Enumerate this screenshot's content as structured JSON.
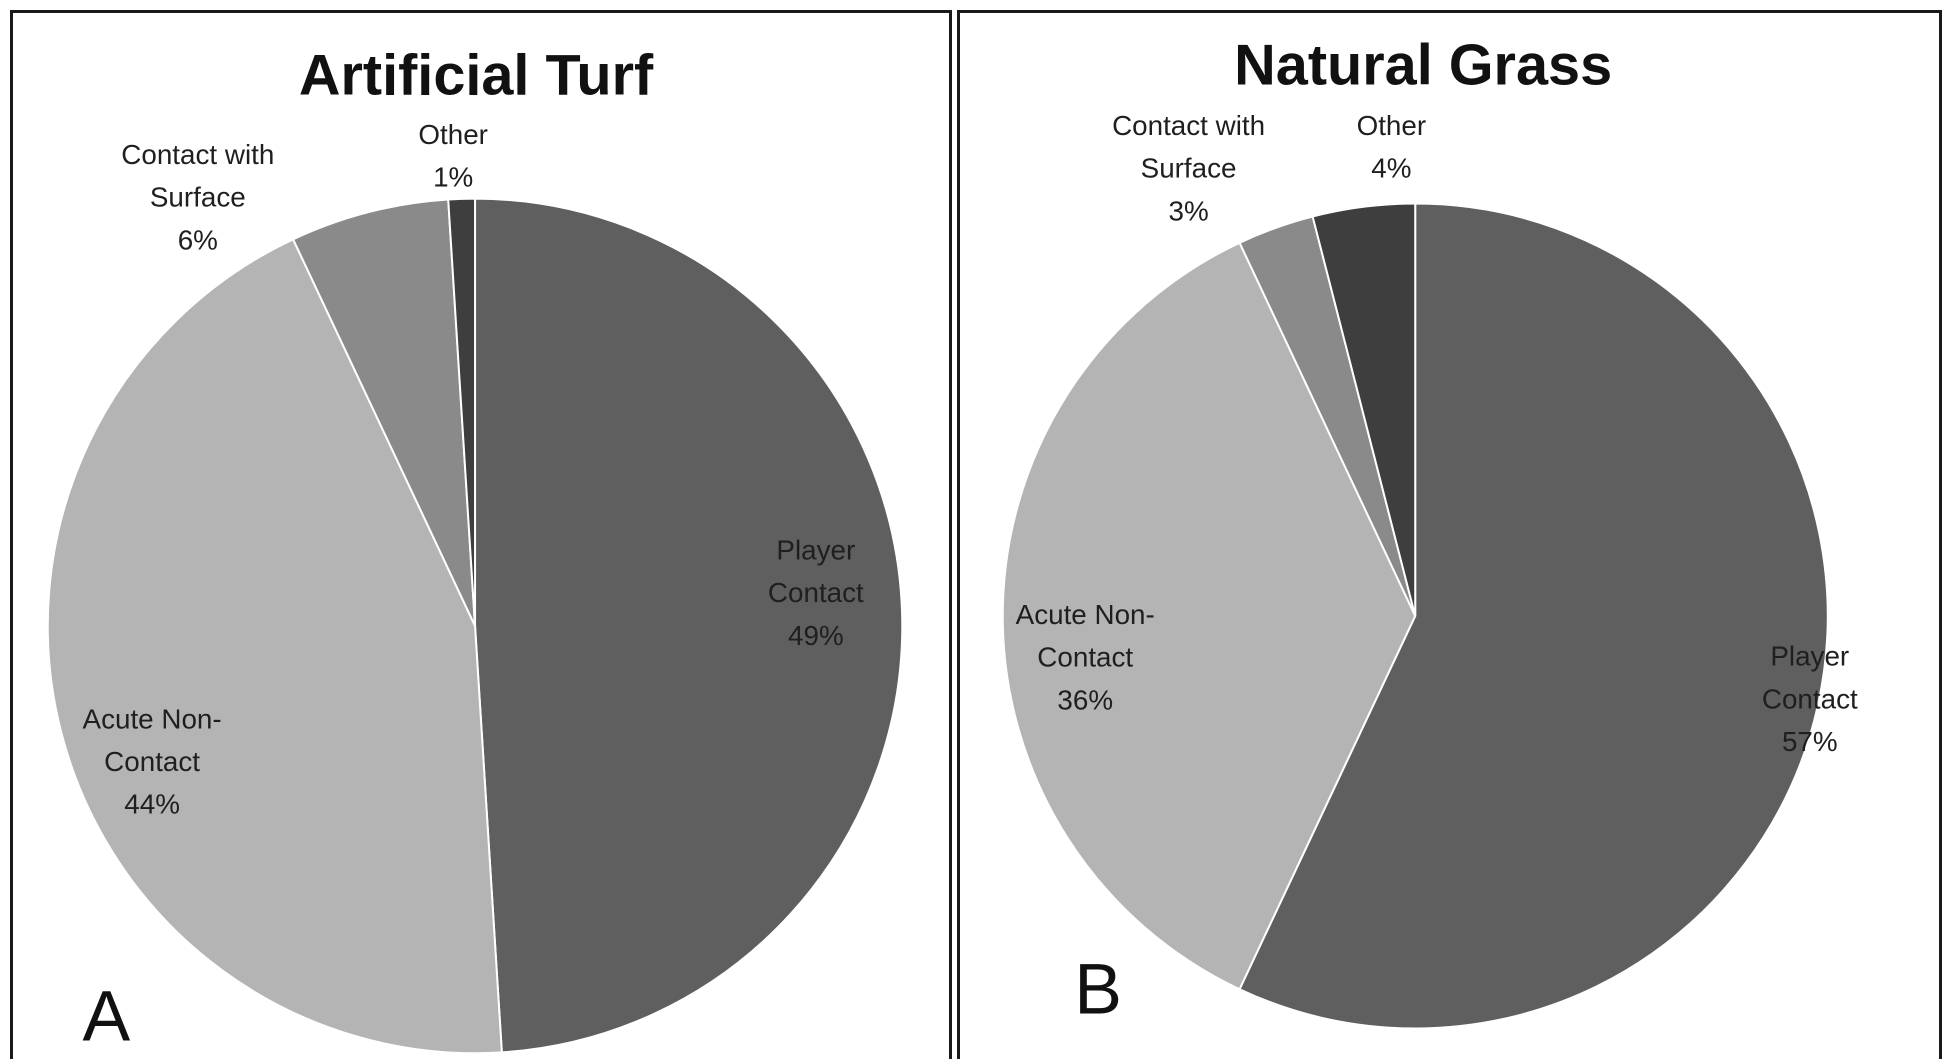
{
  "chart_data": [
    {
      "type": "pie",
      "panel_letter": "A",
      "title": "Artificial Turf",
      "slices": [
        {
          "category_lines": [
            "Player",
            "Contact"
          ],
          "pct_label": "49%",
          "value": 49,
          "color": "#5f5f5f"
        },
        {
          "category_lines": [
            "Acute Non-",
            "Contact"
          ],
          "pct_label": "44%",
          "value": 44,
          "color": "#b4b4b4"
        },
        {
          "category_lines": [
            "Contact with",
            "Surface"
          ],
          "pct_label": "6%",
          "value": 6,
          "color": "#8a8a8a"
        },
        {
          "category_lines": [
            "Other"
          ],
          "pct_label": "1%",
          "value": 1,
          "color": "#3e3e3e"
        }
      ]
    },
    {
      "type": "pie",
      "panel_letter": "B",
      "title": "Natural Grass",
      "slices": [
        {
          "category_lines": [
            "Player",
            "Contact"
          ],
          "pct_label": "57%",
          "value": 57,
          "color": "#5f5f5f"
        },
        {
          "category_lines": [
            "Acute Non-",
            "Contact"
          ],
          "pct_label": "36%",
          "value": 36,
          "color": "#b4b4b4"
        },
        {
          "category_lines": [
            "Contact with",
            "Surface"
          ],
          "pct_label": "3%",
          "value": 3,
          "color": "#8a8a8a"
        },
        {
          "category_lines": [
            "Other"
          ],
          "pct_label": "4%",
          "value": 4,
          "color": "#3e3e3e"
        }
      ]
    }
  ]
}
